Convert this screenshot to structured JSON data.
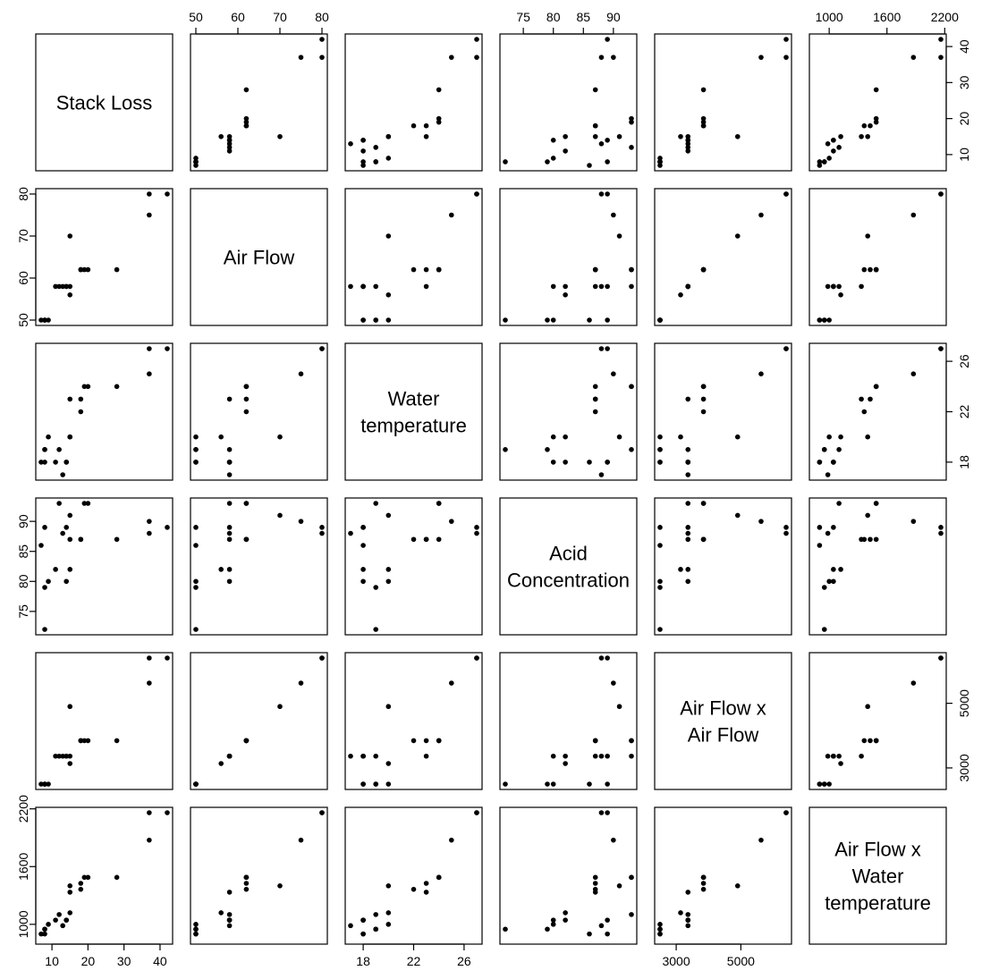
{
  "chart_data": {
    "type": "scatter",
    "kind": "scatterplot-matrix",
    "title": "",
    "variables": [
      {
        "name": "Stack Loss",
        "label_lines": [
          "Stack Loss"
        ],
        "range": [
          7,
          42
        ],
        "ticks": [
          10,
          20,
          30,
          40
        ],
        "axis": "bottom-right"
      },
      {
        "name": "Air Flow",
        "label_lines": [
          "Air Flow"
        ],
        "range": [
          50,
          80
        ],
        "ticks": [
          50,
          60,
          70,
          80
        ],
        "axis": "top-left"
      },
      {
        "name": "Water temperature",
        "label_lines": [
          "Water",
          "temperature"
        ],
        "range": [
          17,
          27
        ],
        "ticks": [
          18,
          22,
          26
        ],
        "axis": "bottom-right"
      },
      {
        "name": "Acid Concentration",
        "label_lines": [
          "Acid",
          "Concentration"
        ],
        "range": [
          72,
          93
        ],
        "ticks": [
          75,
          80,
          85,
          90
        ],
        "axis": "top-left"
      },
      {
        "name": "Air Flow x Air Flow",
        "label_lines": [
          "Air Flow x",
          "Air Flow"
        ],
        "range": [
          2500,
          6400
        ],
        "ticks": [
          3000,
          5000
        ],
        "axis": "bottom-right"
      },
      {
        "name": "Air Flow x Water temperature",
        "label_lines": [
          "Air Flow x",
          "Water",
          "temperature"
        ],
        "range": [
          850,
          2160
        ],
        "ticks": [
          1000,
          1600,
          2200
        ],
        "axis": "top-left"
      }
    ],
    "observations": [
      [
        42,
        80,
        27,
        89,
        6400,
        2160
      ],
      [
        37,
        80,
        27,
        88,
        6400,
        2160
      ],
      [
        37,
        75,
        25,
        90,
        5625,
        1875
      ],
      [
        28,
        62,
        24,
        87,
        3844,
        1488
      ],
      [
        18,
        62,
        22,
        87,
        3844,
        1364
      ],
      [
        18,
        62,
        23,
        87,
        3844,
        1426
      ],
      [
        19,
        62,
        24,
        93,
        3844,
        1488
      ],
      [
        20,
        62,
        24,
        93,
        3844,
        1488
      ],
      [
        15,
        58,
        23,
        87,
        3364,
        1334
      ],
      [
        14,
        58,
        18,
        80,
        3364,
        1044
      ],
      [
        14,
        58,
        18,
        89,
        3364,
        1044
      ],
      [
        13,
        58,
        17,
        88,
        3364,
        986
      ],
      [
        11,
        58,
        18,
        82,
        3364,
        1044
      ],
      [
        12,
        58,
        19,
        93,
        3364,
        1102
      ],
      [
        8,
        50,
        18,
        89,
        2500,
        900
      ],
      [
        7,
        50,
        18,
        86,
        2500,
        900
      ],
      [
        8,
        50,
        19,
        72,
        2500,
        950
      ],
      [
        8,
        50,
        19,
        79,
        2500,
        950
      ],
      [
        9,
        50,
        20,
        80,
        2500,
        1000
      ],
      [
        15,
        56,
        20,
        82,
        3136,
        1120
      ],
      [
        15,
        70,
        20,
        91,
        4900,
        1400
      ]
    ],
    "grid": false,
    "legend": "none"
  }
}
